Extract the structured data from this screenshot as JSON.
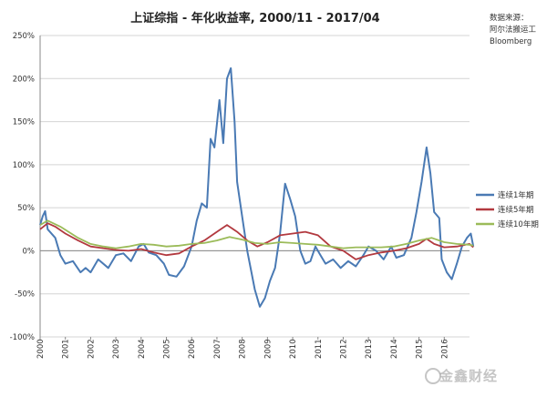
{
  "chart_data": {
    "type": "line",
    "title": "上证综指 - 年化收益率, 2000/11 - 2017/04",
    "xlabel": "",
    "ylabel": "",
    "ylim": [
      -100,
      250
    ],
    "y_ticks": [
      "250%",
      "200%",
      "150%",
      "100%",
      "50%",
      "0%",
      "-50%",
      "-100%"
    ],
    "y_tick_values": [
      250,
      200,
      150,
      100,
      50,
      0,
      -50,
      -100
    ],
    "x_range": [
      2000,
      2017
    ],
    "x_ticks": [
      "2000",
      "2001",
      "2002",
      "2003",
      "2004",
      "2005",
      "2006",
      "2007",
      "2008",
      "2009",
      "2010",
      "2011",
      "2012",
      "2013",
      "2014",
      "2015",
      "2016"
    ],
    "grid": true,
    "legend_position": "right",
    "series": [
      {
        "name": "连续1年期",
        "color": "#4a7ab4",
        "points": [
          [
            2000.0,
            30
          ],
          [
            2000.1,
            40
          ],
          [
            2000.2,
            46
          ],
          [
            2000.3,
            25
          ],
          [
            2000.6,
            15
          ],
          [
            2000.8,
            -5
          ],
          [
            2001.0,
            -15
          ],
          [
            2001.3,
            -12
          ],
          [
            2001.6,
            -25
          ],
          [
            2001.8,
            -20
          ],
          [
            2002.0,
            -25
          ],
          [
            2002.3,
            -10
          ],
          [
            2002.7,
            -20
          ],
          [
            2003.0,
            -5
          ],
          [
            2003.3,
            -3
          ],
          [
            2003.6,
            -12
          ],
          [
            2003.9,
            5
          ],
          [
            2004.1,
            8
          ],
          [
            2004.3,
            -2
          ],
          [
            2004.6,
            -5
          ],
          [
            2004.9,
            -15
          ],
          [
            2005.1,
            -28
          ],
          [
            2005.4,
            -30
          ],
          [
            2005.7,
            -18
          ],
          [
            2006.0,
            5
          ],
          [
            2006.2,
            35
          ],
          [
            2006.4,
            55
          ],
          [
            2006.6,
            50
          ],
          [
            2006.75,
            130
          ],
          [
            2006.9,
            120
          ],
          [
            2007.1,
            175
          ],
          [
            2007.25,
            125
          ],
          [
            2007.4,
            200
          ],
          [
            2007.55,
            212
          ],
          [
            2007.7,
            150
          ],
          [
            2007.8,
            80
          ],
          [
            2008.0,
            40
          ],
          [
            2008.2,
            0
          ],
          [
            2008.5,
            -45
          ],
          [
            2008.7,
            -65
          ],
          [
            2008.9,
            -55
          ],
          [
            2009.1,
            -35
          ],
          [
            2009.3,
            -20
          ],
          [
            2009.5,
            20
          ],
          [
            2009.7,
            78
          ],
          [
            2009.9,
            60
          ],
          [
            2010.1,
            40
          ],
          [
            2010.3,
            0
          ],
          [
            2010.5,
            -15
          ],
          [
            2010.7,
            -12
          ],
          [
            2010.9,
            5
          ],
          [
            2011.1,
            -5
          ],
          [
            2011.3,
            -15
          ],
          [
            2011.6,
            -10
          ],
          [
            2011.9,
            -20
          ],
          [
            2012.2,
            -12
          ],
          [
            2012.5,
            -18
          ],
          [
            2012.8,
            -5
          ],
          [
            2013.0,
            5
          ],
          [
            2013.3,
            0
          ],
          [
            2013.6,
            -10
          ],
          [
            2013.9,
            5
          ],
          [
            2014.1,
            -8
          ],
          [
            2014.4,
            -5
          ],
          [
            2014.7,
            15
          ],
          [
            2014.9,
            45
          ],
          [
            2015.1,
            80
          ],
          [
            2015.3,
            120
          ],
          [
            2015.45,
            90
          ],
          [
            2015.6,
            45
          ],
          [
            2015.8,
            38
          ],
          [
            2015.9,
            -10
          ],
          [
            2016.1,
            -25
          ],
          [
            2016.3,
            -33
          ],
          [
            2016.5,
            -15
          ],
          [
            2016.7,
            5
          ],
          [
            2016.9,
            15
          ],
          [
            2017.05,
            20
          ],
          [
            2017.15,
            5
          ]
        ]
      },
      {
        "name": "连续5年期",
        "color": "#b2393f",
        "points": [
          [
            2000.0,
            25
          ],
          [
            2000.3,
            32
          ],
          [
            2000.6,
            28
          ],
          [
            2001.0,
            20
          ],
          [
            2001.5,
            12
          ],
          [
            2002.0,
            5
          ],
          [
            2002.5,
            3
          ],
          [
            2003.0,
            1
          ],
          [
            2003.5,
            0
          ],
          [
            2004.0,
            2
          ],
          [
            2004.5,
            -2
          ],
          [
            2005.0,
            -5
          ],
          [
            2005.5,
            -3
          ],
          [
            2006.0,
            5
          ],
          [
            2006.5,
            12
          ],
          [
            2007.0,
            22
          ],
          [
            2007.4,
            30
          ],
          [
            2007.8,
            22
          ],
          [
            2008.2,
            12
          ],
          [
            2008.6,
            5
          ],
          [
            2009.0,
            10
          ],
          [
            2009.5,
            18
          ],
          [
            2010.0,
            20
          ],
          [
            2010.5,
            22
          ],
          [
            2011.0,
            18
          ],
          [
            2011.5,
            5
          ],
          [
            2012.0,
            0
          ],
          [
            2012.5,
            -10
          ],
          [
            2013.0,
            -5
          ],
          [
            2013.5,
            -2
          ],
          [
            2014.0,
            0
          ],
          [
            2014.5,
            3
          ],
          [
            2015.0,
            8
          ],
          [
            2015.3,
            14
          ],
          [
            2015.6,
            8
          ],
          [
            2016.0,
            4
          ],
          [
            2016.5,
            5
          ],
          [
            2017.0,
            8
          ],
          [
            2017.15,
            4
          ]
        ]
      },
      {
        "name": "连续10年期",
        "color": "#9bbb59",
        "points": [
          [
            2000.0,
            30
          ],
          [
            2000.3,
            35
          ],
          [
            2000.8,
            28
          ],
          [
            2001.5,
            15
          ],
          [
            2002.0,
            8
          ],
          [
            2002.5,
            5
          ],
          [
            2003.0,
            3
          ],
          [
            2003.5,
            5
          ],
          [
            2004.0,
            8
          ],
          [
            2004.5,
            7
          ],
          [
            2005.0,
            5
          ],
          [
            2005.5,
            6
          ],
          [
            2006.0,
            8
          ],
          [
            2006.5,
            9
          ],
          [
            2007.0,
            12
          ],
          [
            2007.5,
            16
          ],
          [
            2008.0,
            13
          ],
          [
            2008.5,
            9
          ],
          [
            2009.0,
            8
          ],
          [
            2009.5,
            10
          ],
          [
            2010.0,
            9
          ],
          [
            2010.5,
            8
          ],
          [
            2011.0,
            7
          ],
          [
            2011.5,
            5
          ],
          [
            2012.0,
            3
          ],
          [
            2012.5,
            4
          ],
          [
            2013.0,
            4
          ],
          [
            2013.5,
            4
          ],
          [
            2014.0,
            5
          ],
          [
            2014.5,
            8
          ],
          [
            2015.0,
            12
          ],
          [
            2015.5,
            15
          ],
          [
            2016.0,
            10
          ],
          [
            2016.5,
            8
          ],
          [
            2017.0,
            7
          ],
          [
            2017.15,
            6
          ]
        ]
      }
    ]
  },
  "source_note": [
    "数据来源：",
    "阿尔法搬运工",
    "Bloomberg"
  ],
  "watermark": "金鑫财经"
}
